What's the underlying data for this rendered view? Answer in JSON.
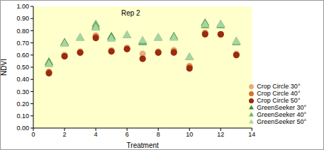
{
  "chart_data": {
    "type": "scatter",
    "title": "Rep 2",
    "x_label": "Treatment",
    "y_label": "NDVI",
    "x": [
      1,
      2,
      3,
      4,
      5,
      6,
      7,
      8,
      9,
      10,
      11,
      12,
      13
    ],
    "series": [
      {
        "name": "GreenSeeker 30°",
        "color": "#3a8f3a",
        "marker": "triangle",
        "values": [
          0.54,
          0.7,
          0.74,
          0.83,
          0.75,
          0.76,
          0.71,
          0.74,
          0.75,
          0.58,
          0.86,
          0.85,
          0.71
        ]
      },
      {
        "name": "GreenSeeker 40°",
        "color": "#6fb36f",
        "marker": "triangle",
        "values": [
          0.53,
          0.69,
          0.74,
          0.85,
          0.74,
          0.76,
          0.7,
          0.74,
          0.74,
          0.58,
          0.84,
          0.84,
          0.7
        ]
      },
      {
        "name": "GreenSeeker 50°",
        "color": "#a9d4a0",
        "marker": "triangle",
        "values": [
          0.52,
          0.69,
          0.74,
          0.82,
          0.73,
          0.76,
          0.72,
          0.74,
          0.74,
          0.58,
          0.85,
          0.85,
          0.71
        ]
      },
      {
        "name": "Crop Circle 30°",
        "color": "#e3ad7d",
        "marker": "circle",
        "values": [
          0.46,
          0.6,
          0.63,
          0.76,
          0.64,
          0.66,
          0.61,
          0.63,
          0.64,
          0.51,
          0.78,
          0.77,
          0.61
        ]
      },
      {
        "name": "Crop Circle 40°",
        "color": "#d2742f",
        "marker": "circle",
        "values": [
          0.46,
          0.59,
          0.62,
          0.75,
          0.63,
          0.65,
          0.57,
          0.62,
          0.63,
          0.5,
          0.78,
          0.77,
          0.6
        ]
      },
      {
        "name": "Crop Circle 50°",
        "color": "#9a2a10",
        "marker": "circle",
        "values": [
          0.45,
          0.59,
          0.62,
          0.74,
          0.63,
          0.65,
          0.57,
          0.62,
          0.62,
          0.49,
          0.77,
          0.77,
          0.6
        ]
      }
    ],
    "xlim": [
      0,
      14
    ],
    "xticks": [
      0,
      2,
      4,
      6,
      8,
      10,
      12,
      14
    ],
    "ylim": [
      0,
      1
    ],
    "yticks": [
      {
        "value": 0,
        "label": "0.00"
      },
      {
        "value": 0.1,
        "label": "0.10"
      },
      {
        "value": 0.2,
        "label": "0.20"
      },
      {
        "value": 0.3,
        "label": "0.30"
      },
      {
        "value": 0.4,
        "label": "0.40"
      },
      {
        "value": 0.5,
        "label": "0.50"
      },
      {
        "value": 0.6,
        "label": "0.60"
      },
      {
        "value": 0.7,
        "label": "0.70"
      },
      {
        "value": 0.8,
        "label": "0.80"
      },
      {
        "value": 0.9,
        "label": "0.90"
      },
      {
        "value": 1,
        "label": "1.00"
      }
    ],
    "grid": false,
    "legend": "lower right"
  }
}
